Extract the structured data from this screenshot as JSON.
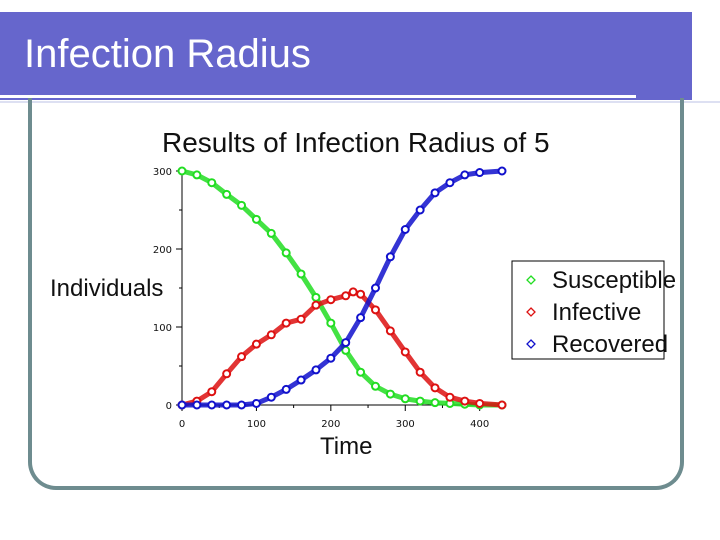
{
  "slide": {
    "title": "Infection Radius"
  },
  "colors": {
    "header": "#6666cc",
    "frame": "#6e8c8f",
    "susceptible": "#22dd22",
    "infective": "#dd1111",
    "recovered": "#1111cc"
  },
  "chart_data": {
    "type": "scatter",
    "title": "Results of Infection Radius of 5",
    "xlabel": "Time",
    "ylabel": "Individuals",
    "xlim": [
      0,
      430
    ],
    "ylim": [
      0,
      300
    ],
    "xticks": [
      0,
      100,
      200,
      300,
      400
    ],
    "yticks": [
      0,
      100,
      200,
      300
    ],
    "legend": "right",
    "series": [
      {
        "name": "Susceptible",
        "color": "#22dd22",
        "x": [
          0,
          20,
          40,
          60,
          80,
          100,
          120,
          140,
          160,
          180,
          200,
          220,
          240,
          260,
          280,
          300,
          320,
          340,
          360,
          380,
          400,
          430
        ],
        "y": [
          300,
          295,
          285,
          270,
          256,
          238,
          220,
          195,
          168,
          138,
          105,
          70,
          42,
          24,
          14,
          8,
          5,
          3,
          2,
          1,
          0,
          0
        ]
      },
      {
        "name": "Infective",
        "color": "#dd1111",
        "x": [
          0,
          20,
          40,
          60,
          80,
          100,
          120,
          140,
          160,
          180,
          200,
          220,
          230,
          240,
          260,
          280,
          300,
          320,
          340,
          360,
          380,
          400,
          430
        ],
        "y": [
          0,
          5,
          17,
          40,
          62,
          78,
          90,
          105,
          110,
          128,
          135,
          140,
          145,
          142,
          122,
          95,
          68,
          42,
          22,
          10,
          5,
          2,
          0
        ]
      },
      {
        "name": "Recovered",
        "color": "#1111cc",
        "x": [
          0,
          20,
          40,
          60,
          80,
          100,
          120,
          140,
          160,
          180,
          200,
          220,
          240,
          260,
          280,
          300,
          320,
          340,
          360,
          380,
          400,
          430
        ],
        "y": [
          0,
          0,
          0,
          0,
          0,
          2,
          10,
          20,
          32,
          45,
          60,
          80,
          112,
          150,
          190,
          225,
          250,
          272,
          285,
          295,
          298,
          300
        ]
      }
    ]
  }
}
